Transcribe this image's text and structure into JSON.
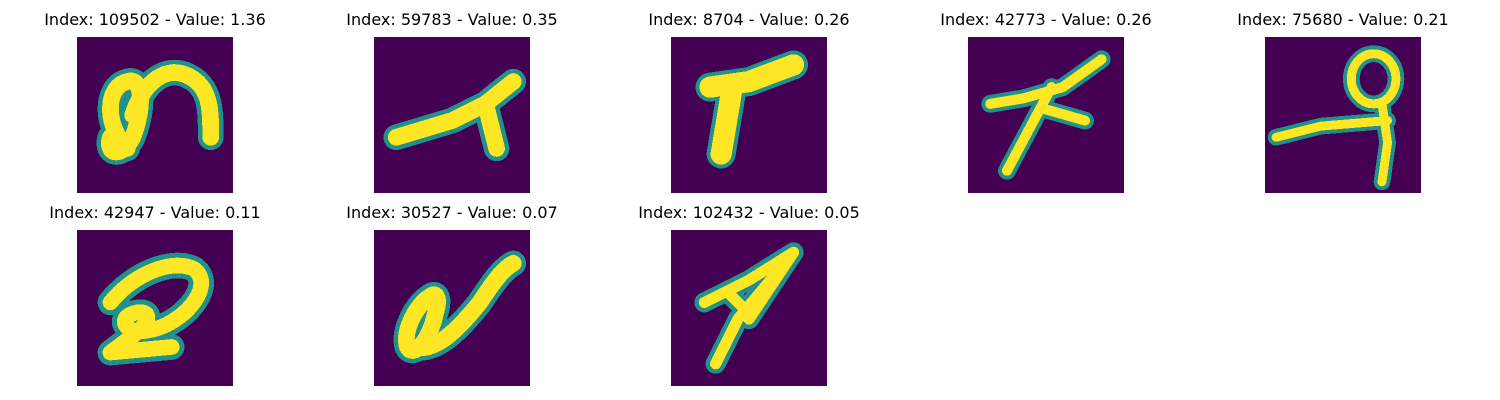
{
  "figure": {
    "background": "#ffffff",
    "colormap": {
      "name": "viridis",
      "low": "#440154",
      "mid": "#21918c",
      "high": "#fde725"
    }
  },
  "chart_data": {
    "type": "heatmap",
    "layout": "grid of image panels, 2 rows x 5 columns, 8 filled",
    "axis": "off",
    "panels": [
      {
        "index": 109502,
        "value": 1.36,
        "title": "Index: 109502 - Value: 1.36",
        "glyph": "looped-a"
      },
      {
        "index": 59783,
        "value": 0.35,
        "title": "Index: 59783 - Value: 0.35",
        "glyph": "diagonal-y"
      },
      {
        "index": 8704,
        "value": 0.26,
        "title": "Index: 8704 - Value: 0.26",
        "glyph": "thick-t"
      },
      {
        "index": 42773,
        "value": 0.26,
        "title": "Index: 42773 - Value: 0.26",
        "glyph": "crossed-stroke"
      },
      {
        "index": 75680,
        "value": 0.21,
        "title": "Index: 75680 - Value: 0.21",
        "glyph": "loop-with-bar"
      },
      {
        "index": 42947,
        "value": 0.11,
        "title": "Index: 42947 - Value: 0.11",
        "glyph": "curled-2"
      },
      {
        "index": 30527,
        "value": 0.07,
        "title": "Index: 30527 - Value: 0.07",
        "glyph": "loop-a"
      },
      {
        "index": 102432,
        "value": 0.05,
        "title": "Index: 102432 - Value: 0.05",
        "glyph": "forked-7"
      }
    ]
  }
}
